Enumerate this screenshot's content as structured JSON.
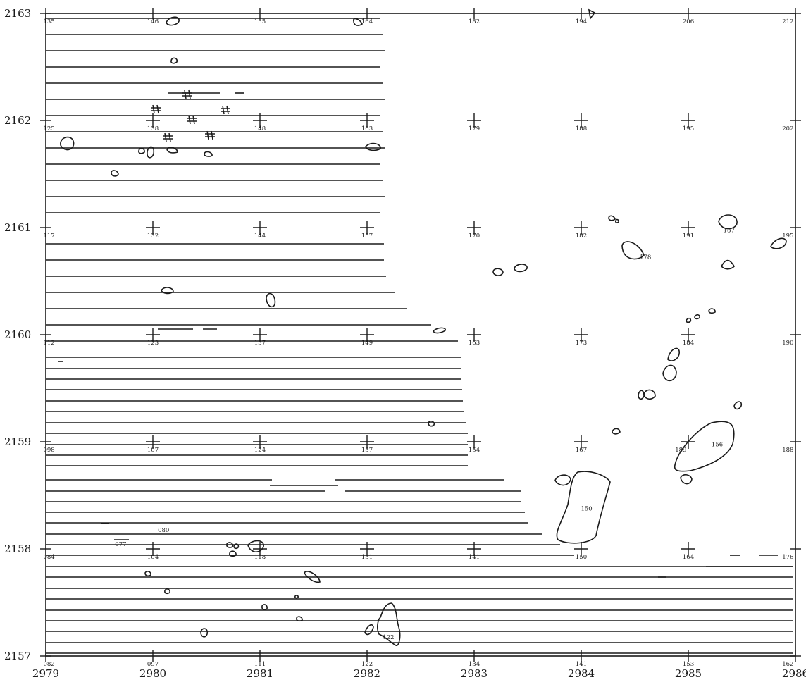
{
  "map": {
    "x_ticks": [
      {
        "value": 2979,
        "label": "2979"
      },
      {
        "value": 2980,
        "label": "2980"
      },
      {
        "value": 2981,
        "label": "2981"
      },
      {
        "value": 2982,
        "label": "2982"
      },
      {
        "value": 2983,
        "label": "2983"
      },
      {
        "value": 2984,
        "label": "2984"
      },
      {
        "value": 2985,
        "label": "2985"
      },
      {
        "value": 2986,
        "label": "2986"
      }
    ],
    "y_ticks": [
      {
        "value": 2157,
        "label": "2157"
      },
      {
        "value": 2158,
        "label": "2158"
      },
      {
        "value": 2159,
        "label": "2159"
      },
      {
        "value": 2160,
        "label": "2160"
      },
      {
        "value": 2161,
        "label": "2161"
      },
      {
        "value": 2162,
        "label": "2162"
      },
      {
        "value": 2163,
        "label": "2163"
      }
    ],
    "spot_labels": [
      {
        "x": 2979.03,
        "y": 2163.0,
        "text": "135"
      },
      {
        "x": 2980.0,
        "y": 2163.0,
        "text": "146"
      },
      {
        "x": 2981.0,
        "y": 2163.0,
        "text": "155"
      },
      {
        "x": 2982.0,
        "y": 2163.0,
        "text": "164"
      },
      {
        "x": 2983.0,
        "y": 2163.0,
        "text": "182"
      },
      {
        "x": 2984.0,
        "y": 2163.0,
        "text": "194"
      },
      {
        "x": 2985.0,
        "y": 2163.0,
        "text": "206"
      },
      {
        "x": 2985.93,
        "y": 2163.0,
        "text": "212"
      },
      {
        "x": 2979.03,
        "y": 2162.0,
        "text": "125"
      },
      {
        "x": 2980.0,
        "y": 2162.0,
        "text": "138"
      },
      {
        "x": 2981.0,
        "y": 2162.0,
        "text": "148"
      },
      {
        "x": 2982.0,
        "y": 2162.0,
        "text": "163"
      },
      {
        "x": 2983.0,
        "y": 2162.0,
        "text": "179"
      },
      {
        "x": 2984.0,
        "y": 2162.0,
        "text": "188"
      },
      {
        "x": 2985.0,
        "y": 2162.0,
        "text": "195"
      },
      {
        "x": 2985.93,
        "y": 2162.0,
        "text": "202"
      },
      {
        "x": 2979.03,
        "y": 2161.0,
        "text": "117"
      },
      {
        "x": 2980.0,
        "y": 2161.0,
        "text": "132"
      },
      {
        "x": 2981.0,
        "y": 2161.0,
        "text": "144"
      },
      {
        "x": 2982.0,
        "y": 2161.0,
        "text": "157"
      },
      {
        "x": 2983.0,
        "y": 2161.0,
        "text": "170"
      },
      {
        "x": 2984.0,
        "y": 2161.0,
        "text": "182"
      },
      {
        "x": 2985.0,
        "y": 2161.0,
        "text": "191"
      },
      {
        "x": 2985.93,
        "y": 2161.0,
        "text": "195"
      },
      {
        "x": 2979.03,
        "y": 2160.0,
        "text": "112"
      },
      {
        "x": 2980.0,
        "y": 2160.0,
        "text": "123"
      },
      {
        "x": 2981.0,
        "y": 2160.0,
        "text": "137"
      },
      {
        "x": 2982.0,
        "y": 2160.0,
        "text": "149"
      },
      {
        "x": 2983.0,
        "y": 2160.0,
        "text": "163"
      },
      {
        "x": 2984.0,
        "y": 2160.0,
        "text": "173"
      },
      {
        "x": 2985.0,
        "y": 2160.0,
        "text": "184"
      },
      {
        "x": 2985.93,
        "y": 2160.0,
        "text": "190"
      },
      {
        "x": 2979.03,
        "y": 2159.0,
        "text": "098"
      },
      {
        "x": 2980.0,
        "y": 2159.0,
        "text": "107"
      },
      {
        "x": 2981.0,
        "y": 2159.0,
        "text": "124"
      },
      {
        "x": 2982.0,
        "y": 2159.0,
        "text": "137"
      },
      {
        "x": 2983.0,
        "y": 2159.0,
        "text": "154"
      },
      {
        "x": 2984.0,
        "y": 2159.0,
        "text": "167"
      },
      {
        "x": 2984.93,
        "y": 2159.0,
        "text": "189"
      },
      {
        "x": 2985.93,
        "y": 2159.0,
        "text": "188"
      },
      {
        "x": 2979.03,
        "y": 2158.0,
        "text": "084"
      },
      {
        "x": 2980.0,
        "y": 2158.0,
        "text": "104"
      },
      {
        "x": 2981.0,
        "y": 2158.0,
        "text": "118"
      },
      {
        "x": 2982.0,
        "y": 2158.0,
        "text": "131"
      },
      {
        "x": 2983.0,
        "y": 2158.0,
        "text": "141"
      },
      {
        "x": 2984.0,
        "y": 2158.0,
        "text": "150"
      },
      {
        "x": 2985.0,
        "y": 2158.0,
        "text": "164"
      },
      {
        "x": 2985.93,
        "y": 2158.0,
        "text": "176"
      },
      {
        "x": 2979.03,
        "y": 2157.0,
        "text": "082"
      },
      {
        "x": 2980.0,
        "y": 2157.0,
        "text": "097"
      },
      {
        "x": 2981.0,
        "y": 2157.0,
        "text": "111"
      },
      {
        "x": 2982.0,
        "y": 2157.0,
        "text": "122"
      },
      {
        "x": 2983.0,
        "y": 2157.0,
        "text": "134"
      },
      {
        "x": 2984.0,
        "y": 2157.0,
        "text": "141"
      },
      {
        "x": 2985.0,
        "y": 2157.0,
        "text": "153"
      },
      {
        "x": 2985.93,
        "y": 2157.0,
        "text": "162"
      },
      {
        "x": 2984.6,
        "y": 2160.8,
        "text": "178"
      },
      {
        "x": 2985.38,
        "y": 2161.05,
        "text": "187"
      },
      {
        "x": 2985.27,
        "y": 2159.05,
        "text": "156"
      },
      {
        "x": 2984.05,
        "y": 2158.45,
        "text": "150"
      },
      {
        "x": 2980.1,
        "y": 2158.25,
        "text": "080"
      },
      {
        "x": 2979.7,
        "y": 2158.12,
        "text": "077"
      },
      {
        "x": 2982.2,
        "y": 2157.25,
        "text": "122"
      }
    ]
  }
}
